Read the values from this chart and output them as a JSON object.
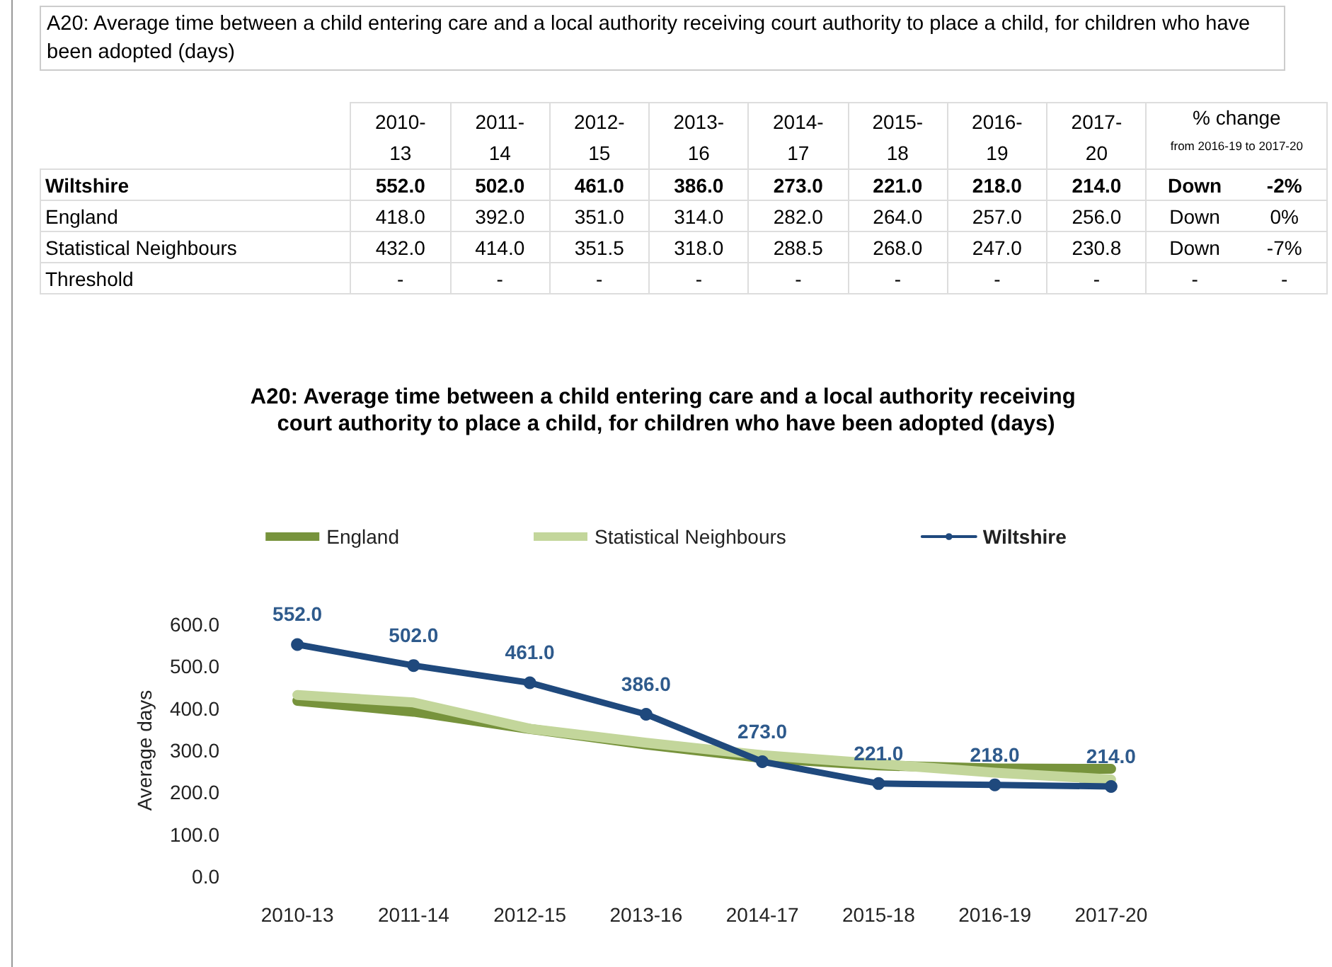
{
  "chart_data": [
    {
      "type": "heatmap",
      "title": "A20: Average time between a child entering care and a local authority receiving court authority to place a child, for children who have been adopted (days)",
      "categories": [
        "2010-13",
        "2011-14",
        "2012-15",
        "2013-16",
        "2014-17",
        "2015-18",
        "2016-19",
        "2017-20",
        "% change",
        null
      ],
      "y_categories": [
        "Wiltshire",
        "England",
        "Statistical Neighbours",
        "Threshold"
      ],
      "cells": [
        [
          552.0,
          502.0,
          461.0,
          386.0,
          273.0,
          221.0,
          218.0,
          214.0,
          null,
          null
        ],
        [
          418.0,
          392.0,
          351.0,
          314.0,
          282.0,
          264.0,
          257.0,
          256.0,
          null,
          null
        ],
        [
          432.0,
          414.0,
          351.5,
          318.0,
          288.5,
          268.0,
          247.0,
          230.8,
          null,
          null
        ],
        [
          null,
          null,
          null,
          null,
          null,
          null,
          null,
          null,
          null,
          null
        ]
      ],
      "cell_labels": [
        [
          "552.0",
          "502.0",
          "461.0",
          "386.0",
          "273.0",
          "221.0",
          "218.0",
          "214.0",
          "Down",
          "-2%"
        ],
        [
          "418.0",
          "392.0",
          "351.0",
          "314.0",
          "282.0",
          "264.0",
          "257.0",
          "256.0",
          "Down",
          "0%"
        ],
        [
          "432.0",
          "414.0",
          "351.5",
          "318.0",
          "288.5",
          "268.0",
          "247.0",
          "230.8",
          "Down",
          "-7%"
        ],
        [
          "-",
          "-",
          "-",
          "-",
          "-",
          "-",
          "-",
          "-",
          "-",
          "-"
        ]
      ],
      "annotations": [
        "from 2016-19 to 2017-20"
      ]
    },
    {
      "type": "line",
      "title": "A20: Average time between a child entering care and a local authority receiving court authority to place a child, for children who have been adopted (days)",
      "ylabel": "Average days",
      "categories": [
        "2010-13",
        "2011-14",
        "2012-15",
        "2013-16",
        "2014-17",
        "2015-18",
        "2016-19",
        "2017-20"
      ],
      "series": [
        {
          "name": "England",
          "color": "#77933c",
          "marker": "none",
          "values": [
            418.0,
            392.0,
            351.0,
            314.0,
            282.0,
            264.0,
            257.0,
            256.0
          ]
        },
        {
          "name": "Statistical Neighbours",
          "color": "#c3d69b",
          "marker": "none",
          "values": [
            432.0,
            414.0,
            351.5,
            318.0,
            288.5,
            268.0,
            247.0,
            230.8
          ]
        },
        {
          "name": "Wiltshire",
          "color": "#1f497d",
          "marker": "circle",
          "values": [
            552.0,
            502.0,
            461.0,
            386.0,
            273.0,
            221.0,
            218.0,
            214.0
          ],
          "value_labels": [
            "552.0",
            "502.0",
            "461.0",
            "386.0",
            "273.0",
            "221.0",
            "218.0",
            "214.0"
          ]
        }
      ],
      "ylim": [
        0,
        600
      ],
      "yticks": [
        {
          "value": 0,
          "label": "0.0"
        },
        {
          "value": 100,
          "label": "100.0"
        },
        {
          "value": 200,
          "label": "200.0"
        },
        {
          "value": 300,
          "label": "300.0"
        },
        {
          "value": 400,
          "label": "400.0"
        },
        {
          "value": 500,
          "label": "500.0"
        },
        {
          "value": 600,
          "label": "600.0"
        }
      ],
      "grid": false,
      "legend": "top"
    }
  ]
}
